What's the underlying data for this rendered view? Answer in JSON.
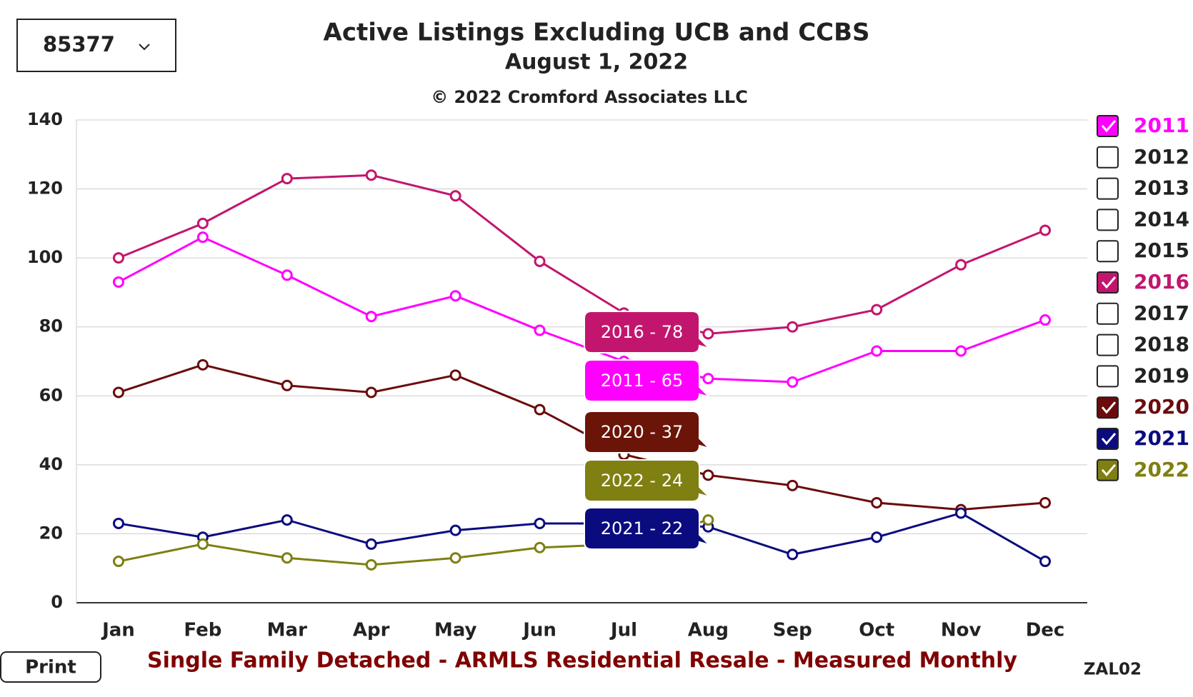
{
  "dropdown": "85377",
  "print_button": "Print",
  "footer": "Single Family Detached - ARMLS Residential Resale - Measured Monthly",
  "code": "ZAL02",
  "chart_data": {
    "type": "line",
    "title": "Active Listings Excluding UCB and CCBS",
    "subtitle": "August 1, 2022",
    "copyright": "© 2022 Cromford Associates LLC",
    "categories": [
      "Jan",
      "Feb",
      "Mar",
      "Apr",
      "May",
      "Jun",
      "Jul",
      "Aug",
      "Sep",
      "Oct",
      "Nov",
      "Dec"
    ],
    "ylim": [
      0,
      140
    ],
    "yticks": [
      0,
      20,
      40,
      60,
      80,
      100,
      120,
      140
    ],
    "grid": true,
    "series": [
      {
        "name": "2011",
        "checked": true,
        "color": "#ff00ff",
        "values": [
          93,
          106,
          95,
          83,
          89,
          79,
          70,
          65,
          64,
          73,
          73,
          82
        ]
      },
      {
        "name": "2012",
        "checked": false
      },
      {
        "name": "2013",
        "checked": false
      },
      {
        "name": "2014",
        "checked": false
      },
      {
        "name": "2015",
        "checked": false
      },
      {
        "name": "2016",
        "checked": true,
        "color": "#c2166e",
        "values": [
          100,
          110,
          123,
          124,
          118,
          99,
          84,
          78,
          80,
          85,
          98,
          108
        ]
      },
      {
        "name": "2017",
        "checked": false
      },
      {
        "name": "2018",
        "checked": false
      },
      {
        "name": "2019",
        "checked": false
      },
      {
        "name": "2020",
        "checked": true,
        "color": "#6b0b0b",
        "values": [
          61,
          69,
          63,
          61,
          66,
          56,
          43,
          37,
          34,
          29,
          27,
          29
        ]
      },
      {
        "name": "2021",
        "checked": true,
        "color": "#0b0b80",
        "values": [
          23,
          19,
          24,
          17,
          21,
          23,
          23,
          22,
          14,
          19,
          26,
          12
        ]
      },
      {
        "name": "2022",
        "checked": true,
        "color": "#7f7f12",
        "values": [
          12,
          17,
          13,
          11,
          13,
          16,
          17,
          24,
          null,
          null,
          null,
          null
        ]
      }
    ],
    "tooltips": [
      {
        "text": "2016 - 78",
        "color": "#c2166e"
      },
      {
        "text": "2011 - 65",
        "color": "#ff00ff"
      },
      {
        "text": "2020 - 37",
        "color": "#6b1408"
      },
      {
        "text": "2022 - 24",
        "color": "#7f7f12"
      },
      {
        "text": "2021 - 22",
        "color": "#0b0b80"
      }
    ]
  }
}
